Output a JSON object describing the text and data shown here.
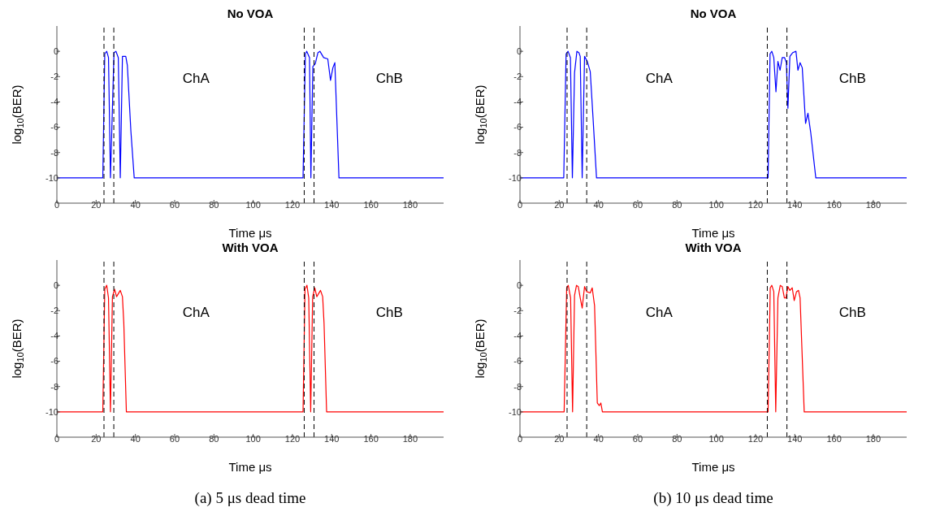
{
  "chart_data": [
    {
      "type": "line",
      "title": "No VOA",
      "xlabel": "Time μs",
      "ylabel": "log$_{10}$(BER)",
      "xlim": [
        0,
        197
      ],
      "ylim": [
        -12,
        2
      ],
      "xticks": [
        0,
        20,
        40,
        60,
        80,
        100,
        120,
        140,
        160,
        180
      ],
      "yticks": [
        -10,
        -8,
        -6,
        -4,
        -2,
        0
      ],
      "series": [
        {
          "color": "#0000ff",
          "x": [
            0,
            23.4,
            24.4,
            25.4,
            26.3,
            27.3,
            29.1,
            30.1,
            31.3,
            32.3,
            33.4,
            35.1,
            35.9,
            37.7,
            39.4,
            125.4,
            126.6,
            127.3,
            128.7,
            129.4,
            130.4,
            131.6,
            133,
            134,
            135.9,
            138,
            139.4,
            140.6,
            141.6,
            143.7,
            197
          ],
          "values": [
            -10,
            -10,
            -0.2,
            0,
            -0.5,
            -10,
            -0.1,
            0,
            -0.5,
            -10,
            -0.4,
            -0.4,
            -1.1,
            -6.3,
            -10,
            -10,
            -0.2,
            0,
            -0.5,
            -10,
            -1.2,
            -1,
            -0.1,
            0,
            -0.5,
            -0.6,
            -2.3,
            -1.3,
            -0.9,
            -10,
            -10
          ]
        }
      ],
      "ref_lines": [
        {
          "axis": "x",
          "value": 24,
          "color": "#000000",
          "line_style": "dashed"
        },
        {
          "axis": "x",
          "value": 29,
          "color": "#000000",
          "line_style": "dashed"
        },
        {
          "axis": "x",
          "value": 126,
          "color": "#000000",
          "line_style": "dashed"
        },
        {
          "axis": "x",
          "value": 131,
          "color": "#000000",
          "line_style": "dashed"
        }
      ],
      "annotations": [
        "ChA",
        "ChB"
      ]
    },
    {
      "type": "line",
      "title": "No VOA",
      "xlabel": "Time μs",
      "ylabel": "log$_{10}$(BER)",
      "xlim": [
        0,
        197
      ],
      "ylim": [
        -12,
        2
      ],
      "xticks": [
        0,
        20,
        40,
        60,
        80,
        100,
        120,
        140,
        160,
        180
      ],
      "yticks": [
        -10,
        -8,
        -6,
        -4,
        -2,
        0
      ],
      "series": [
        {
          "color": "#0000ff",
          "x": [
            0,
            22.3,
            23.5,
            24.5,
            25.7,
            26.7,
            27.8,
            29,
            30,
            30.7,
            31.7,
            32.9,
            34.3,
            35.8,
            37.2,
            39,
            126.4,
            127.4,
            128.3,
            129.3,
            130.4,
            131.4,
            132.5,
            133.6,
            134.8,
            135.7,
            136.5,
            137.5,
            139,
            140.6,
            141.6,
            142.7,
            143.8,
            145.5,
            146.7,
            148.1,
            150.7,
            197
          ],
          "values": [
            -10,
            -10,
            -0.2,
            0,
            -0.5,
            -10,
            -1.7,
            0,
            -0.1,
            -0.4,
            -10,
            -0.4,
            -0.8,
            -1.6,
            -5.2,
            -10,
            -10,
            -0.2,
            0,
            -0.5,
            -3.2,
            -0.8,
            -1.5,
            -0.5,
            -0.5,
            -0.9,
            -4.5,
            -0.4,
            -0.1,
            0,
            -1.5,
            -0.9,
            -1.3,
            -5.7,
            -4.9,
            -6.4,
            -10,
            -10
          ]
        }
      ],
      "ref_lines": [
        {
          "axis": "x",
          "value": 24,
          "color": "#000000",
          "line_style": "dashed"
        },
        {
          "axis": "x",
          "value": 34,
          "color": "#000000",
          "line_style": "dashed"
        },
        {
          "axis": "x",
          "value": 126,
          "color": "#000000",
          "line_style": "dashed"
        },
        {
          "axis": "x",
          "value": 136,
          "color": "#000000",
          "line_style": "dashed"
        }
      ],
      "annotations": [
        "ChA",
        "ChB"
      ]
    },
    {
      "type": "line",
      "title": "With VOA",
      "xlabel": "Time μs",
      "ylabel": "log$_{10}$(BER)",
      "xlim": [
        0,
        197
      ],
      "ylim": [
        -12,
        2
      ],
      "xticks": [
        0,
        20,
        40,
        60,
        80,
        100,
        120,
        140,
        160,
        180
      ],
      "yticks": [
        -10,
        -8,
        -6,
        -4,
        -2,
        0
      ],
      "series": [
        {
          "color": "#ff0000",
          "x": [
            0,
            23.4,
            24.4,
            25.4,
            26.3,
            27.3,
            28.3,
            29.4,
            30.4,
            32.3,
            33.4,
            34.1,
            35.4,
            125.4,
            126.4,
            127.4,
            128.3,
            129.3,
            130.3,
            131.4,
            132.4,
            134.3,
            135.4,
            136.1,
            137.4,
            197
          ],
          "values": [
            -10,
            -10,
            -0.3,
            0,
            -1,
            -10,
            -0.9,
            -0.3,
            -0.9,
            -0.4,
            -0.9,
            -3,
            -10,
            -10,
            -0.3,
            0,
            -1,
            -10,
            -0.9,
            -0.2,
            -0.9,
            -0.4,
            -0.9,
            -3,
            -10,
            -10
          ]
        }
      ],
      "ref_lines": [
        {
          "axis": "x",
          "value": 24,
          "color": "#000000",
          "line_style": "dashed"
        },
        {
          "axis": "x",
          "value": 29,
          "color": "#000000",
          "line_style": "dashed"
        },
        {
          "axis": "x",
          "value": 126,
          "color": "#000000",
          "line_style": "dashed"
        },
        {
          "axis": "x",
          "value": 131,
          "color": "#000000",
          "line_style": "dashed"
        }
      ],
      "annotations": [
        "ChA",
        "ChB",
        "(a) 5 μs dead time"
      ]
    },
    {
      "type": "line",
      "title": "With VOA",
      "xlabel": "Time μs",
      "ylabel": "log$_{10}$(BER)",
      "xlim": [
        0,
        197
      ],
      "ylim": [
        -12,
        2
      ],
      "xticks": [
        0,
        20,
        40,
        60,
        80,
        100,
        120,
        140,
        160,
        180
      ],
      "yticks": [
        -10,
        -8,
        -6,
        -4,
        -2,
        0
      ],
      "series": [
        {
          "color": "#ff0000",
          "x": [
            0,
            22.5,
            23.8,
            24.6,
            25.8,
            26.8,
            27.8,
            28.8,
            29.7,
            30.7,
            31.7,
            32.9,
            34,
            35.8,
            36.8,
            38,
            39.4,
            40.4,
            41.2,
            42,
            126.4,
            127.5,
            128.3,
            129.3,
            130.3,
            131.4,
            132.6,
            133.6,
            134.7,
            135.5,
            136.5,
            137.5,
            138.7,
            139.7,
            140.9,
            141.9,
            142.7,
            144.8,
            197
          ],
          "values": [
            -10,
            -10,
            -0.2,
            0,
            -1,
            -10,
            -0.8,
            0,
            -0.1,
            -1,
            -1.8,
            -0.1,
            -0.5,
            -0.6,
            -0.2,
            -1.6,
            -9.3,
            -9.5,
            -9.3,
            -10,
            -10,
            -0.2,
            0,
            -0.5,
            -10,
            -1,
            0,
            -0.1,
            -1,
            -1,
            -0.1,
            -0.4,
            -0.2,
            -1.2,
            -0.5,
            -0.4,
            -1,
            -10,
            -10
          ]
        }
      ],
      "ref_lines": [
        {
          "axis": "x",
          "value": 24,
          "color": "#000000",
          "line_style": "dashed"
        },
        {
          "axis": "x",
          "value": 34,
          "color": "#000000",
          "line_style": "dashed"
        },
        {
          "axis": "x",
          "value": 126,
          "color": "#000000",
          "line_style": "dashed"
        },
        {
          "axis": "x",
          "value": 136,
          "color": "#000000",
          "line_style": "dashed"
        }
      ],
      "annotations": [
        "ChA",
        "ChB",
        "(b) 10 μs dead time"
      ]
    }
  ]
}
